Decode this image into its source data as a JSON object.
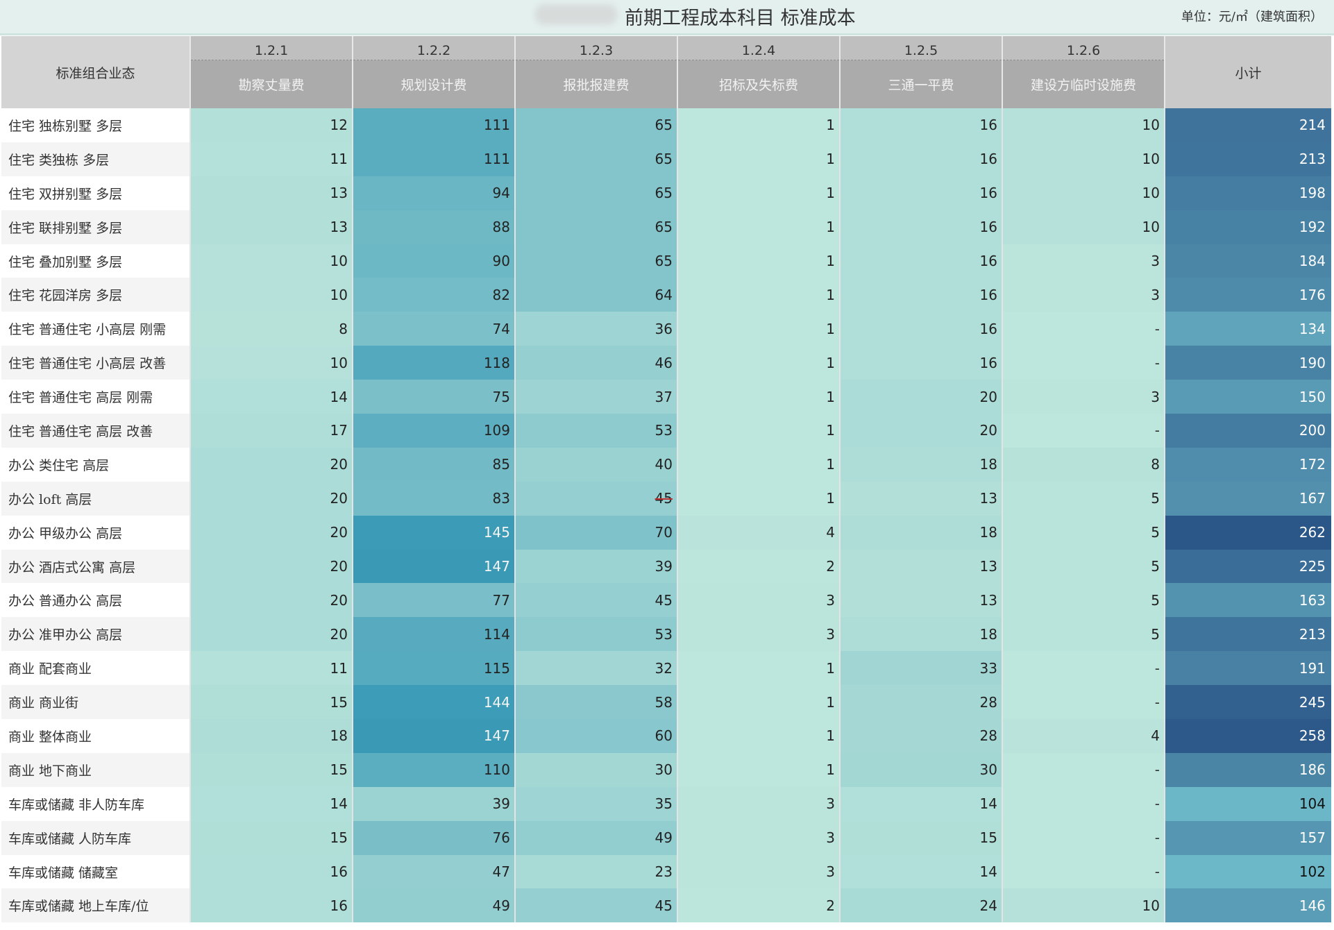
{
  "header": {
    "title": "前期工程成本科目 标准成本",
    "unit": "单位：元/㎡（建筑面积）"
  },
  "chart_data": {
    "type": "heatmap",
    "title": "前期工程成本科目 标准成本",
    "row_header": "标准组合业态",
    "columns": [
      {
        "code": "1.2.1",
        "name": "勘察丈量费"
      },
      {
        "code": "1.2.2",
        "name": "规划设计费"
      },
      {
        "code": "1.2.3",
        "name": "报批报建费"
      },
      {
        "code": "1.2.4",
        "name": "招标及失标费"
      },
      {
        "code": "1.2.5",
        "name": "三通一平费"
      },
      {
        "code": "1.2.6",
        "name": "建设方临时设施费"
      }
    ],
    "subtotal_label": "小计",
    "rows": [
      {
        "label": "住宅 独栋别墅 多层",
        "values": [
          12,
          111,
          65,
          1,
          16,
          10
        ],
        "subtotal": 214
      },
      {
        "label": "住宅 类独栋 多层",
        "values": [
          11,
          111,
          65,
          1,
          16,
          10
        ],
        "subtotal": 213
      },
      {
        "label": "住宅 双拼别墅 多层",
        "values": [
          13,
          94,
          65,
          1,
          16,
          10
        ],
        "subtotal": 198
      },
      {
        "label": "住宅 联排别墅 多层",
        "values": [
          13,
          88,
          65,
          1,
          16,
          10
        ],
        "subtotal": 192
      },
      {
        "label": "住宅 叠加别墅 多层",
        "values": [
          10,
          90,
          65,
          1,
          16,
          3
        ],
        "subtotal": 184
      },
      {
        "label": "住宅 花园洋房 多层",
        "values": [
          10,
          82,
          64,
          1,
          16,
          3
        ],
        "subtotal": 176
      },
      {
        "label": "住宅 普通住宅 小高层 刚需",
        "values": [
          8,
          74,
          36,
          1,
          16,
          null
        ],
        "subtotal": 134
      },
      {
        "label": "住宅 普通住宅 小高层 改善",
        "values": [
          10,
          118,
          46,
          1,
          16,
          null
        ],
        "subtotal": 190
      },
      {
        "label": "住宅 普通住宅 高层 刚需",
        "values": [
          14,
          75,
          37,
          1,
          20,
          3
        ],
        "subtotal": 150
      },
      {
        "label": "住宅 普通住宅 高层 改善",
        "values": [
          17,
          109,
          53,
          1,
          20,
          null
        ],
        "subtotal": 200
      },
      {
        "label": "办公 类住宅 高层",
        "values": [
          20,
          85,
          40,
          1,
          18,
          8
        ],
        "subtotal": 172
      },
      {
        "label": "办公 loft 高层",
        "values": [
          20,
          83,
          45,
          1,
          13,
          5
        ],
        "subtotal": 167
      },
      {
        "label": "办公 甲级办公 高层",
        "values": [
          20,
          145,
          70,
          4,
          18,
          5
        ],
        "subtotal": 262
      },
      {
        "label": "办公 酒店式公寓 高层",
        "values": [
          20,
          147,
          39,
          2,
          13,
          5
        ],
        "subtotal": 225
      },
      {
        "label": "办公 普通办公 高层",
        "values": [
          20,
          77,
          45,
          3,
          13,
          5
        ],
        "subtotal": 163
      },
      {
        "label": "办公 准甲办公 高层",
        "values": [
          20,
          114,
          53,
          3,
          18,
          5
        ],
        "subtotal": 213
      },
      {
        "label": "商业 配套商业",
        "values": [
          11,
          115,
          32,
          1,
          33,
          null
        ],
        "subtotal": 191
      },
      {
        "label": "商业 商业街",
        "values": [
          15,
          144,
          58,
          1,
          28,
          null
        ],
        "subtotal": 245
      },
      {
        "label": "商业 整体商业",
        "values": [
          18,
          147,
          60,
          1,
          28,
          4
        ],
        "subtotal": 258
      },
      {
        "label": "商业 地下商业",
        "values": [
          15,
          110,
          30,
          1,
          30,
          null
        ],
        "subtotal": 186
      },
      {
        "label": "车库或储藏 非人防车库",
        "values": [
          14,
          39,
          35,
          3,
          14,
          null
        ],
        "subtotal": 104
      },
      {
        "label": "车库或储藏 人防车库",
        "values": [
          15,
          76,
          49,
          3,
          15,
          null
        ],
        "subtotal": 157
      },
      {
        "label": "车库或储藏 储藏室",
        "values": [
          16,
          47,
          23,
          3,
          14,
          null
        ],
        "subtotal": 102
      },
      {
        "label": "车库或储藏 地上车库/位",
        "values": [
          16,
          49,
          45,
          2,
          24,
          10
        ],
        "subtotal": 146
      }
    ],
    "missing_symbol": "-",
    "color_scale": {
      "cells": {
        "domain": [
          1,
          147
        ],
        "range": [
          "#bde6dc",
          "#3a9ab6"
        ]
      },
      "subtotal": {
        "domain": [
          102,
          262
        ],
        "range": [
          "#6cb8c8",
          "#2b5688"
        ]
      }
    }
  }
}
